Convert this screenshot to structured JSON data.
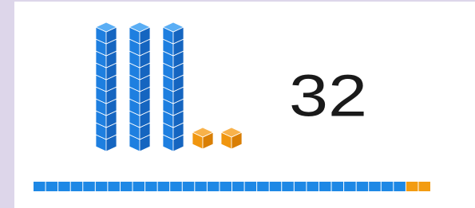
{
  "value": 32
}
